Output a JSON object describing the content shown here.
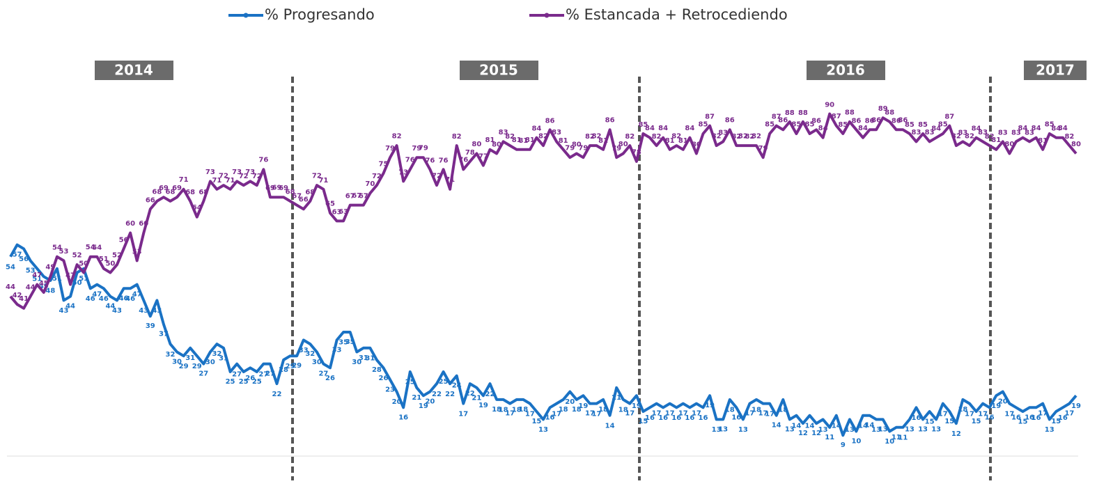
{
  "chart_data": {
    "type": "line",
    "year_labels": [
      "2014",
      "2015",
      "2016",
      "2017"
    ],
    "ylim": [
      5,
      95
    ],
    "series": [
      {
        "name": "% Progresando",
        "color": "#1a72c4",
        "values": [
          54,
          57,
          56,
          53,
          51,
          49,
          48,
          51,
          43,
          44,
          50,
          51,
          46,
          47,
          46,
          44,
          43,
          46,
          46,
          47,
          43,
          39,
          43,
          37,
          32,
          30,
          29,
          31,
          29,
          27,
          30,
          32,
          31,
          25,
          27,
          25,
          26,
          25,
          27,
          27,
          22,
          28,
          29,
          29,
          33,
          32,
          30,
          27,
          26,
          33,
          35,
          35,
          30,
          31,
          31,
          28,
          26,
          23,
          20,
          16,
          25,
          21,
          19,
          20,
          22,
          25,
          22,
          24,
          17,
          22,
          21,
          19,
          22,
          18,
          18,
          17,
          18,
          18,
          17,
          15,
          13,
          16,
          17,
          18,
          20,
          18,
          19,
          17,
          17,
          18,
          14,
          21,
          18,
          17,
          19,
          15,
          16,
          17,
          16,
          17,
          16,
          17,
          16,
          17,
          16,
          19,
          13,
          13,
          18,
          16,
          13,
          17,
          18,
          17,
          17,
          14,
          18,
          13,
          14,
          12,
          14,
          12,
          13,
          11,
          14,
          9,
          13,
          10,
          14,
          14,
          13,
          13,
          10,
          11,
          11,
          13,
          16,
          13,
          15,
          13,
          17,
          15,
          12,
          18,
          17,
          15,
          17,
          16,
          19,
          20,
          17,
          16,
          15,
          16,
          16,
          17,
          13,
          15,
          16,
          17,
          19
        ]
      },
      {
        "name": "% Estancada + Retrocediendo",
        "color": "#7a2a8c",
        "values": [
          44,
          42,
          41,
          44,
          47,
          45,
          49,
          54,
          53,
          47,
          52,
          50,
          54,
          54,
          51,
          50,
          52,
          56,
          60,
          53,
          60,
          66,
          68,
          69,
          68,
          69,
          71,
          68,
          64,
          68,
          73,
          71,
          72,
          71,
          73,
          72,
          73,
          72,
          76,
          69,
          69,
          69,
          68,
          67,
          66,
          68,
          72,
          71,
          65,
          63,
          63,
          67,
          67,
          67,
          70,
          72,
          75,
          79,
          82,
          73,
          76,
          79,
          79,
          76,
          72,
          76,
          71,
          82,
          76,
          78,
          80,
          77,
          81,
          80,
          83,
          82,
          81,
          81,
          81,
          84,
          82,
          86,
          83,
          81,
          79,
          80,
          79,
          82,
          82,
          81,
          86,
          79,
          80,
          82,
          78,
          85,
          84,
          82,
          84,
          81,
          82,
          81,
          84,
          80,
          85,
          87,
          82,
          83,
          86,
          82,
          82,
          82,
          82,
          79,
          85,
          87,
          86,
          88,
          85,
          88,
          85,
          86,
          84,
          90,
          87,
          85,
          88,
          86,
          84,
          86,
          86,
          89,
          88,
          86,
          86,
          85,
          83,
          85,
          83,
          84,
          85,
          87,
          82,
          83,
          82,
          84,
          83,
          82,
          81,
          83,
          80,
          83,
          84,
          83,
          84,
          81,
          85,
          84,
          84,
          82,
          80
        ]
      }
    ]
  }
}
